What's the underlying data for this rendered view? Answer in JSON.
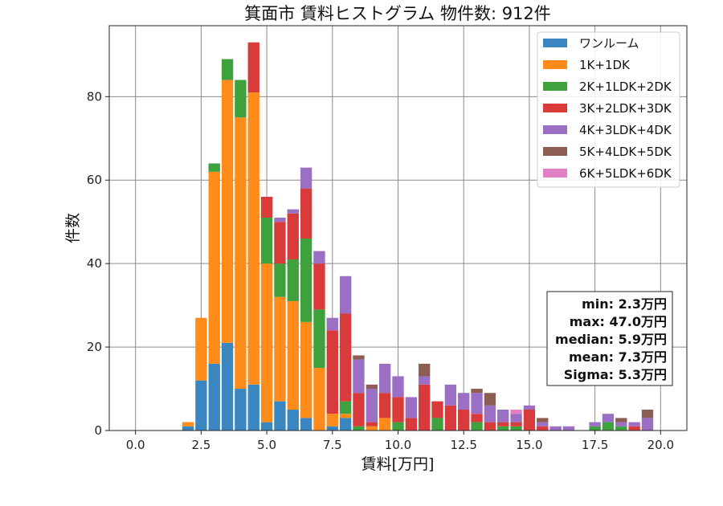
{
  "chart_data": {
    "type": "bar",
    "stacked": true,
    "title": "箕面市 賃料ヒストグラム  物件数: 912件",
    "xlabel": "賃料[万円]",
    "ylabel": "件数",
    "xlim": [
      -1.0,
      21.0
    ],
    "ylim": [
      0,
      97
    ],
    "xticks": [
      "0.0",
      "2.5",
      "5.0",
      "7.5",
      "10.0",
      "12.5",
      "15.0",
      "17.5",
      "20.0"
    ],
    "yticks": [
      "0",
      "20",
      "40",
      "60",
      "80"
    ],
    "grid": true,
    "legend_position": "upper-right",
    "bin_width": 0.5,
    "bin_start": 1.75,
    "series": [
      {
        "name": "ワンルーム",
        "color": "#3a86c0",
        "values": [
          1,
          12,
          16,
          21,
          10,
          11,
          2,
          7,
          5,
          3,
          0,
          1,
          3,
          0,
          0,
          0,
          0,
          0,
          0,
          0,
          0,
          0,
          0,
          0,
          0,
          0,
          0,
          0,
          0,
          0,
          0,
          0,
          0,
          0,
          0,
          0,
          0
        ]
      },
      {
        "name": "1K+1DK",
        "color": "#ff8c1a",
        "values": [
          1,
          15,
          46,
          63,
          65,
          70,
          38,
          25,
          26,
          23,
          15,
          3,
          1,
          0,
          1,
          3,
          0,
          0,
          0,
          0,
          0,
          0,
          0,
          0,
          0,
          0,
          0,
          0,
          0,
          0,
          0,
          0,
          0,
          0,
          0,
          0,
          0
        ]
      },
      {
        "name": "2K+1LDK+2DK",
        "color": "#3ea13e",
        "values": [
          0,
          0,
          2,
          5,
          9,
          0,
          11,
          8,
          10,
          20,
          14,
          0,
          3,
          1,
          0,
          0,
          2,
          0,
          0,
          3,
          0,
          0,
          2,
          0,
          1,
          1,
          0,
          0,
          0,
          0,
          0,
          1,
          2,
          1,
          0,
          0,
          0
        ]
      },
      {
        "name": "3K+2LDK+3DK",
        "color": "#d93a3a",
        "values": [
          0,
          0,
          0,
          0,
          0,
          12,
          5,
          10,
          11,
          12,
          11,
          20,
          21,
          8,
          1,
          6,
          6,
          3,
          11,
          4,
          6,
          5,
          2,
          2,
          1,
          1,
          5,
          1,
          0,
          0,
          0,
          0,
          0,
          0,
          1,
          0,
          0
        ]
      },
      {
        "name": "4K+3LDK+4DK",
        "color": "#9a6fc4",
        "values": [
          0,
          0,
          0,
          0,
          0,
          0,
          0,
          1,
          1,
          5,
          3,
          3,
          9,
          8,
          8,
          7,
          5,
          5,
          2,
          0,
          5,
          4,
          5,
          4,
          3,
          2,
          1,
          1,
          1,
          1,
          0,
          1,
          2,
          1,
          1,
          3,
          0
        ]
      },
      {
        "name": "5K+4LDK+5DK",
        "color": "#8c5d52",
        "values": [
          0,
          0,
          0,
          0,
          0,
          0,
          0,
          0,
          0,
          0,
          0,
          0,
          0,
          1,
          1,
          0,
          0,
          0,
          3,
          0,
          0,
          0,
          1,
          3,
          0,
          0,
          0,
          1,
          0,
          0,
          0,
          0,
          0,
          1,
          0,
          2,
          0
        ]
      },
      {
        "name": "6K+5LDK+6DK",
        "color": "#e37fc5",
        "values": [
          0,
          0,
          0,
          0,
          0,
          0,
          0,
          0,
          0,
          0,
          0,
          0,
          0,
          0,
          0,
          0,
          0,
          0,
          0,
          0,
          0,
          0,
          0,
          0,
          0,
          1,
          0,
          0,
          0,
          0,
          0,
          0,
          0,
          0,
          0,
          0,
          0
        ]
      }
    ],
    "stats": [
      "min: 2.3万円",
      "max: 47.0万円",
      "median: 5.9万円",
      "mean: 7.3万円",
      "Sigma: 5.3万円"
    ]
  }
}
